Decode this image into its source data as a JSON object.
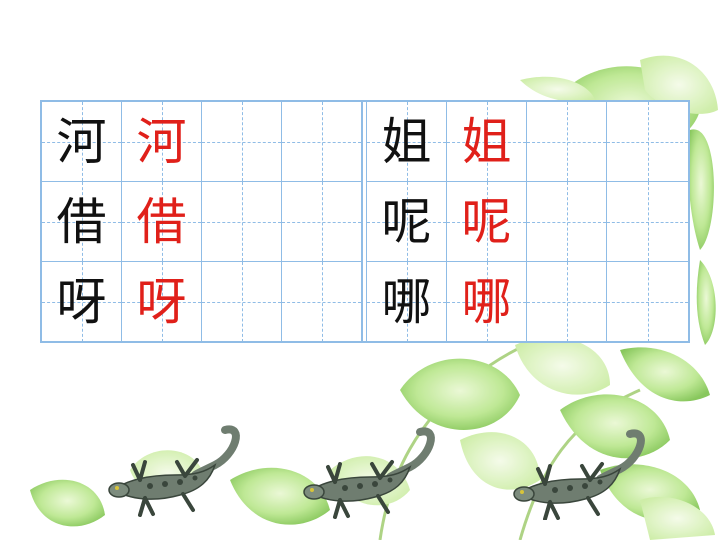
{
  "grid": {
    "rows": [
      {
        "left": {
          "model": "河",
          "trace": "河"
        },
        "right": {
          "model": "姐",
          "trace": "姐"
        }
      },
      {
        "left": {
          "model": "借",
          "trace": "借"
        },
        "right": {
          "model": "呢",
          "trace": "呢"
        }
      },
      {
        "left": {
          "model": "呀",
          "trace": "呀"
        },
        "right": {
          "model": "哪",
          "trace": "哪"
        }
      }
    ]
  },
  "colors": {
    "model_char": "#111111",
    "trace_char": "#e0201a",
    "grid_line": "#8fbce6",
    "lizard": "#6f7d70",
    "leaf": "#9bd86a"
  },
  "decorations": {
    "background": "green-ivy-leaves",
    "lizard_icons": [
      "lizard-icon",
      "lizard-icon",
      "lizard-icon"
    ]
  }
}
